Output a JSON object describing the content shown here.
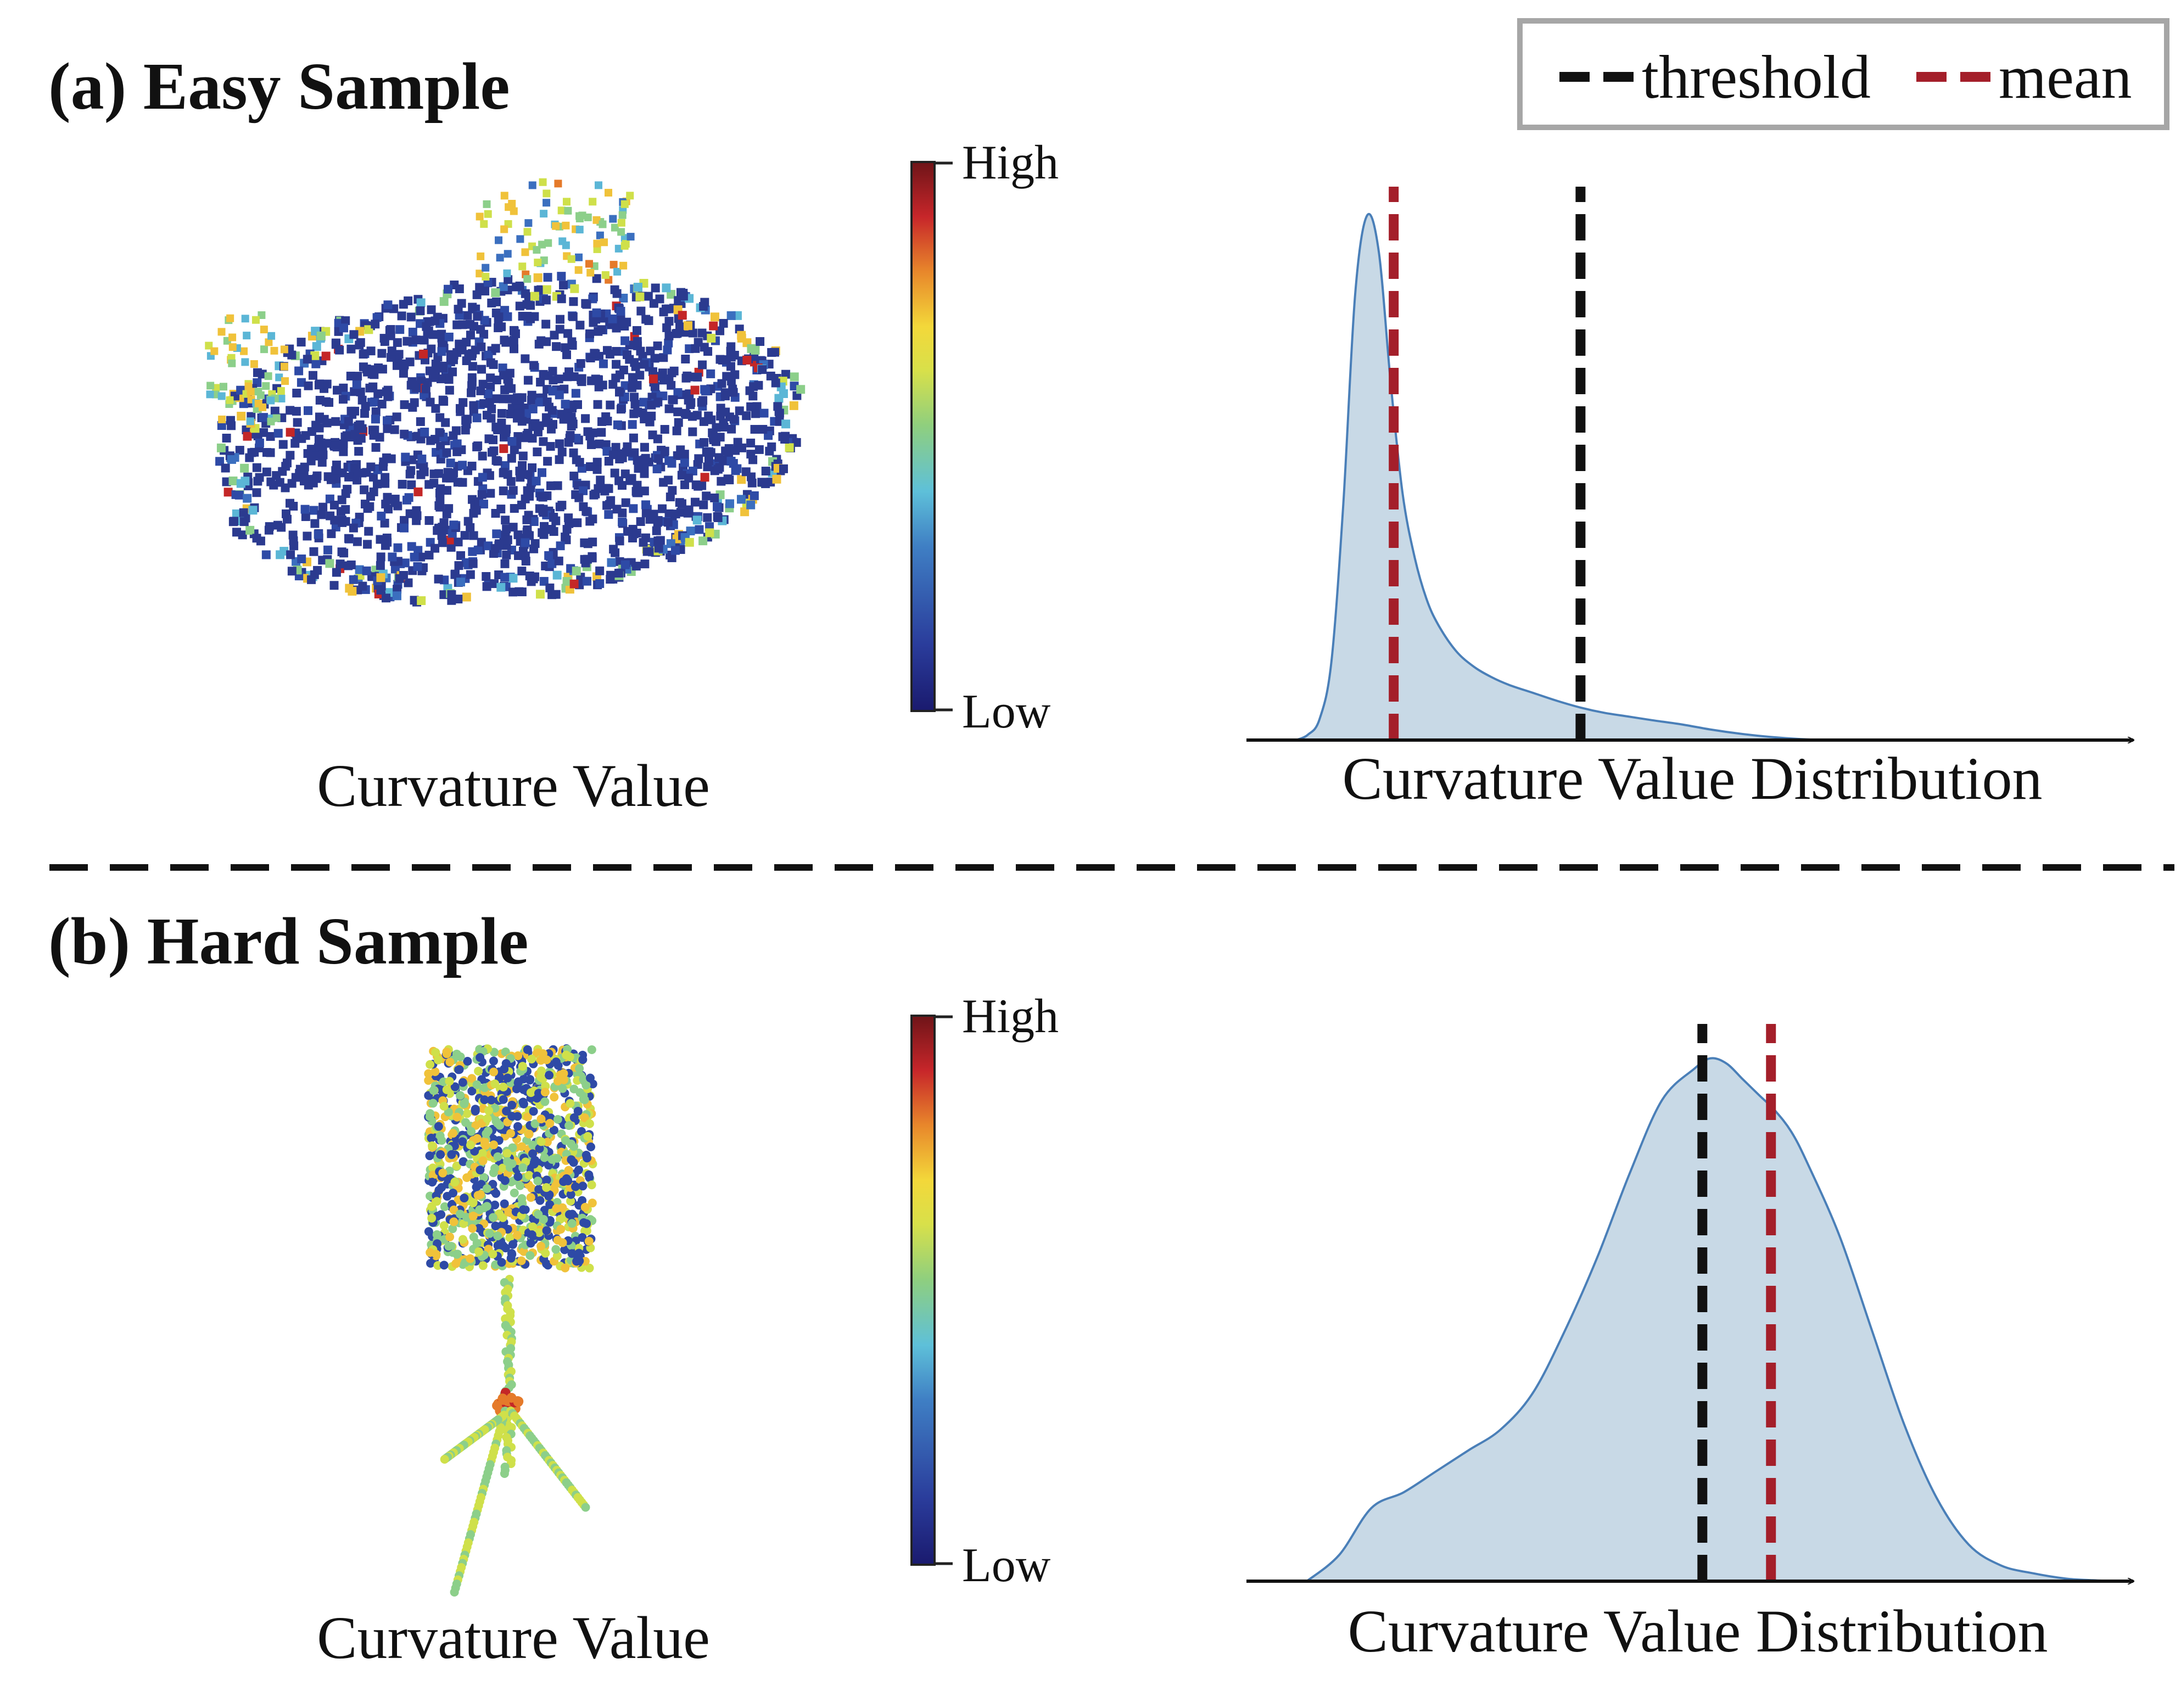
{
  "legend": {
    "threshold_label": "threshold",
    "mean_label": "mean",
    "threshold_color": "#111111",
    "mean_color": "#a41f2a"
  },
  "panels": [
    {
      "title": "(a) Easy Sample",
      "point_cloud_caption": "Curvature Value",
      "colorbar_high": "High",
      "colorbar_low": "Low",
      "distribution_caption": "Curvature Value Distribution"
    },
    {
      "title": "(b) Hard Sample",
      "point_cloud_caption": "Curvature Value",
      "colorbar_high": "High",
      "colorbar_low": "Low",
      "distribution_caption": "Curvature Value Distribution"
    }
  ],
  "colors": {
    "density_fill": "#c8d9e6",
    "density_stroke": "#4a7fb8",
    "colormap": [
      "#00007f",
      "#0000ff",
      "#0080ff",
      "#00ffff",
      "#80ff80",
      "#ffff00",
      "#ff8000",
      "#ff0000",
      "#7f0000"
    ]
  },
  "chart_data": [
    {
      "type": "area",
      "xlabel": "Curvature Value Distribution",
      "x": [
        0,
        0.02,
        0.04,
        0.06,
        0.08,
        0.1,
        0.12,
        0.14,
        0.16,
        0.18,
        0.2,
        0.22,
        0.24,
        0.27,
        0.3,
        0.33,
        0.36,
        0.4,
        0.44,
        0.48,
        0.52,
        0.56,
        0.6,
        0.65,
        0.7,
        0.75,
        0.8,
        0.85,
        0.9,
        0.95,
        1.0
      ],
      "series": [
        {
          "values": [
            0,
            0.01,
            0.04,
            0.15,
            0.45,
            0.85,
            1.0,
            0.93,
            0.68,
            0.47,
            0.35,
            0.27,
            0.22,
            0.17,
            0.14,
            0.12,
            0.105,
            0.09,
            0.075,
            0.062,
            0.052,
            0.045,
            0.038,
            0.03,
            0.02,
            0.012,
            0.006,
            0.002,
            0.0,
            0.0,
            0.0
          ]
        }
      ],
      "threshold": 0.48,
      "mean": 0.165,
      "xlim": [
        0,
        1
      ],
      "ylim": [
        0,
        1.05
      ]
    },
    {
      "type": "area",
      "xlabel": "Curvature Value Distribution",
      "x": [
        0,
        0.04,
        0.08,
        0.12,
        0.16,
        0.2,
        0.24,
        0.28,
        0.32,
        0.36,
        0.4,
        0.44,
        0.48,
        0.5,
        0.52,
        0.54,
        0.56,
        0.58,
        0.6,
        0.62,
        0.66,
        0.7,
        0.74,
        0.78,
        0.82,
        0.86,
        0.9,
        0.94,
        0.97,
        1.0
      ],
      "series": [
        {
          "values": [
            0,
            0.05,
            0.14,
            0.17,
            0.21,
            0.25,
            0.29,
            0.36,
            0.48,
            0.62,
            0.78,
            0.92,
            0.98,
            1.0,
            0.99,
            0.96,
            0.93,
            0.9,
            0.86,
            0.8,
            0.66,
            0.48,
            0.3,
            0.16,
            0.07,
            0.03,
            0.015,
            0.005,
            0.002,
            0.0
          ]
        }
      ],
      "threshold": 0.49,
      "mean": 0.575,
      "xlim": [
        0,
        1
      ],
      "ylim": [
        0,
        1.05
      ]
    }
  ]
}
